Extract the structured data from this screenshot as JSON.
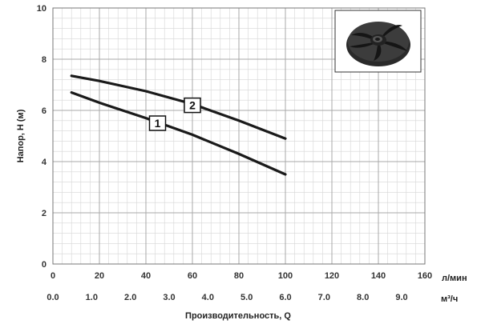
{
  "chart_data": {
    "type": "line",
    "title": "",
    "xlabel": "Производительность, Q",
    "ylabel": "Напор, H (м)",
    "x_unit_primary": "л/мин",
    "x_unit_secondary": "м³/ч",
    "xlim": [
      0,
      160
    ],
    "ylim": [
      0,
      10
    ],
    "x_ticks": [
      "0",
      "20",
      "40",
      "60",
      "80",
      "100",
      "120",
      "140",
      "160"
    ],
    "x_secondary_ticks": [
      "0.0",
      "1.0",
      "2.0",
      "3.0",
      "4.0",
      "5.0",
      "6.0",
      "7.0",
      "8.0",
      "9.0"
    ],
    "y_ticks": [
      "0",
      "2",
      "4",
      "6",
      "8",
      "10"
    ],
    "grid": true,
    "series": [
      {
        "name": "1",
        "x": [
          8,
          20,
          40,
          60,
          80,
          100
        ],
        "y": [
          6.7,
          6.3,
          5.7,
          5.05,
          4.3,
          3.5
        ]
      },
      {
        "name": "2",
        "x": [
          8,
          20,
          40,
          60,
          80,
          100
        ],
        "y": [
          7.35,
          7.15,
          6.75,
          6.25,
          5.6,
          4.9
        ]
      }
    ],
    "curve_labels": [
      {
        "text": "1",
        "x": 45,
        "y": 5.5
      },
      {
        "text": "2",
        "x": 60,
        "y": 6.2
      }
    ],
    "inset_image": "impeller-photo"
  }
}
